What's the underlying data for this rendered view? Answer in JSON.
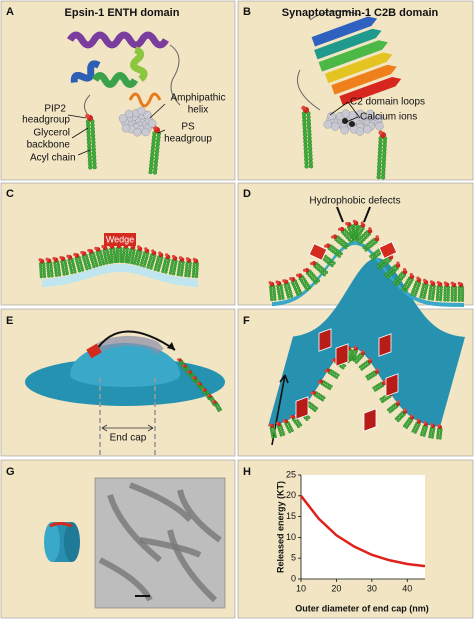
{
  "panels": [
    {
      "letter": "A",
      "title": "Epsin-1 ENTH domain",
      "labels": [
        [
          "PIP2",
          "headgroup"
        ],
        [
          "Glycerol",
          "backbone"
        ],
        [
          "Acyl chain"
        ],
        [
          "Amphipathic",
          "helix"
        ],
        [
          "PS",
          "headgroup"
        ]
      ]
    },
    {
      "letter": "B",
      "title": "Synaptotagmin-1 C2B domain",
      "labels": [
        [
          "C2 domain loops"
        ],
        [
          "Calcium ions"
        ]
      ]
    },
    {
      "letter": "C",
      "labels": [
        [
          "Wedge"
        ]
      ]
    },
    {
      "letter": "D",
      "labels": [
        [
          "Hydrophobic defects"
        ]
      ]
    },
    {
      "letter": "E",
      "labels": [
        [
          "End cap"
        ]
      ]
    },
    {
      "letter": "F"
    },
    {
      "letter": "G"
    },
    {
      "letter": "H"
    }
  ],
  "chart_data": {
    "type": "line",
    "xlabel": "Outer diameter of end cap (nm)",
    "ylabel": "Released energy (KT)",
    "x": [
      10,
      15,
      20,
      25,
      30,
      35,
      40,
      45
    ],
    "series": [
      {
        "color": "#e0201b",
        "values": [
          20,
          14.5,
          10.5,
          7.8,
          5.8,
          4.5,
          3.6,
          3.1
        ]
      }
    ],
    "xlim": [
      10,
      45
    ],
    "xticks": [
      10,
      20,
      30,
      40
    ],
    "ylim": [
      0,
      25
    ],
    "yticks": [
      0,
      5,
      10,
      15,
      20,
      25
    ]
  }
}
